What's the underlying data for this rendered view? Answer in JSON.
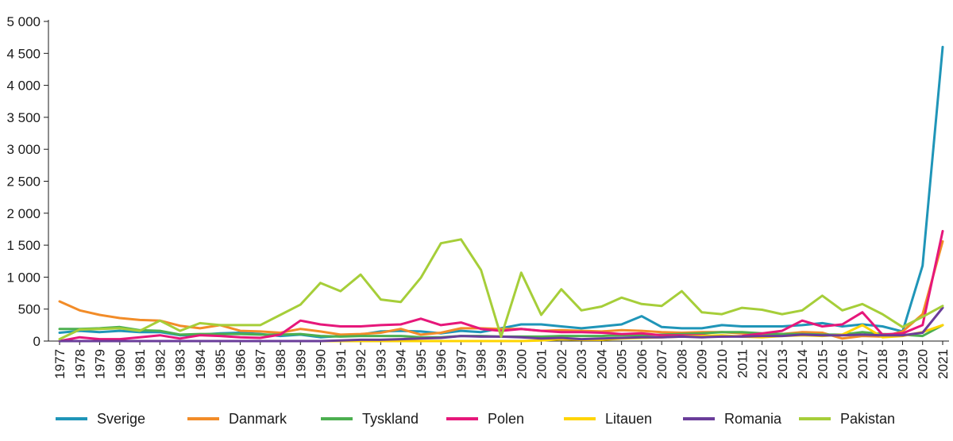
{
  "chart_data": {
    "type": "line",
    "title": "",
    "xlabel": "",
    "ylabel": "",
    "ylim": [
      0,
      5000
    ],
    "yticks": [
      0,
      500,
      1000,
      1500,
      2000,
      2500,
      3000,
      3500,
      4000,
      4500,
      5000
    ],
    "ytick_labels": [
      "0",
      "500",
      "1 000",
      "1 500",
      "2 000",
      "2 500",
      "3 000",
      "3 500",
      "4 000",
      "4 500",
      "5 000"
    ],
    "grid": false,
    "legend_position": "bottom",
    "x": [
      "1977",
      "1978",
      "1979",
      "1980",
      "1981",
      "1982",
      "1983",
      "1984",
      "1985",
      "1986",
      "1987",
      "1988",
      "1989",
      "1990",
      "1991",
      "1992",
      "1993",
      "1994",
      "1995",
      "1996",
      "1997",
      "1998",
      "1999",
      "2000",
      "2001",
      "2002",
      "2003",
      "2004",
      "2005",
      "2006",
      "2007",
      "2008",
      "2009",
      "2010",
      "2011",
      "2012",
      "2013",
      "2014",
      "2015",
      "2016",
      "2017",
      "2018",
      "2019",
      "2020",
      "2021"
    ],
    "series": [
      {
        "name": "Sverige",
        "color": "#1f95b8",
        "values": [
          130,
          160,
          140,
          160,
          140,
          140,
          90,
          100,
          120,
          130,
          110,
          80,
          100,
          60,
          80,
          100,
          150,
          160,
          150,
          120,
          160,
          140,
          200,
          260,
          260,
          230,
          200,
          230,
          260,
          390,
          220,
          200,
          200,
          250,
          230,
          230,
          230,
          250,
          280,
          230,
          260,
          230,
          150,
          1180,
          4600
        ]
      },
      {
        "name": "Danmark",
        "color": "#f28c28",
        "values": [
          620,
          480,
          410,
          360,
          330,
          320,
          240,
          200,
          250,
          160,
          150,
          130,
          190,
          150,
          100,
          110,
          130,
          190,
          100,
          130,
          200,
          200,
          190,
          190,
          160,
          170,
          160,
          150,
          170,
          160,
          140,
          130,
          140,
          140,
          120,
          110,
          110,
          140,
          130,
          40,
          80,
          70,
          150,
          420,
          1560
        ]
      },
      {
        "name": "Tyskland",
        "color": "#4caf50",
        "values": [
          190,
          190,
          200,
          220,
          170,
          160,
          100,
          110,
          110,
          110,
          100,
          100,
          110,
          80,
          70,
          80,
          80,
          80,
          60,
          60,
          80,
          80,
          70,
          70,
          70,
          80,
          80,
          80,
          90,
          90,
          100,
          110,
          120,
          140,
          140,
          120,
          110,
          110,
          100,
          100,
          140,
          110,
          100,
          80,
          250
        ]
      },
      {
        "name": "Polen",
        "color": "#e6177a",
        "values": [
          0,
          60,
          30,
          30,
          60,
          90,
          40,
          90,
          80,
          60,
          50,
          100,
          320,
          260,
          230,
          230,
          250,
          260,
          350,
          250,
          290,
          190,
          160,
          190,
          160,
          140,
          140,
          130,
          110,
          120,
          90,
          90,
          90,
          70,
          80,
          120,
          160,
          320,
          230,
          260,
          450,
          100,
          120,
          250,
          1720
        ]
      },
      {
        "name": "Litauen",
        "color": "#ffd400",
        "values": [
          0,
          0,
          0,
          0,
          0,
          0,
          0,
          0,
          0,
          0,
          0,
          0,
          0,
          0,
          0,
          0,
          0,
          0,
          0,
          0,
          0,
          0,
          0,
          0,
          10,
          30,
          20,
          20,
          40,
          50,
          60,
          70,
          80,
          90,
          70,
          60,
          80,
          90,
          80,
          100,
          250,
          60,
          80,
          140,
          250
        ]
      },
      {
        "name": "Romania",
        "color": "#6a3d9a",
        "values": [
          0,
          0,
          0,
          0,
          0,
          0,
          0,
          0,
          0,
          0,
          0,
          0,
          0,
          0,
          10,
          20,
          20,
          30,
          40,
          50,
          80,
          70,
          70,
          60,
          40,
          50,
          30,
          40,
          50,
          60,
          60,
          70,
          60,
          70,
          70,
          80,
          80,
          100,
          90,
          90,
          100,
          90,
          90,
          130,
          520
        ]
      },
      {
        "name": "Pakistan",
        "color": "#a6ce39",
        "values": [
          30,
          180,
          190,
          200,
          160,
          320,
          160,
          280,
          250,
          250,
          250,
          410,
          570,
          910,
          780,
          1040,
          650,
          610,
          990,
          1530,
          1590,
          1110,
          70,
          1070,
          410,
          810,
          480,
          540,
          680,
          580,
          550,
          780,
          450,
          420,
          520,
          490,
          420,
          480,
          710,
          480,
          580,
          420,
          220,
          380,
          550
        ]
      }
    ]
  }
}
